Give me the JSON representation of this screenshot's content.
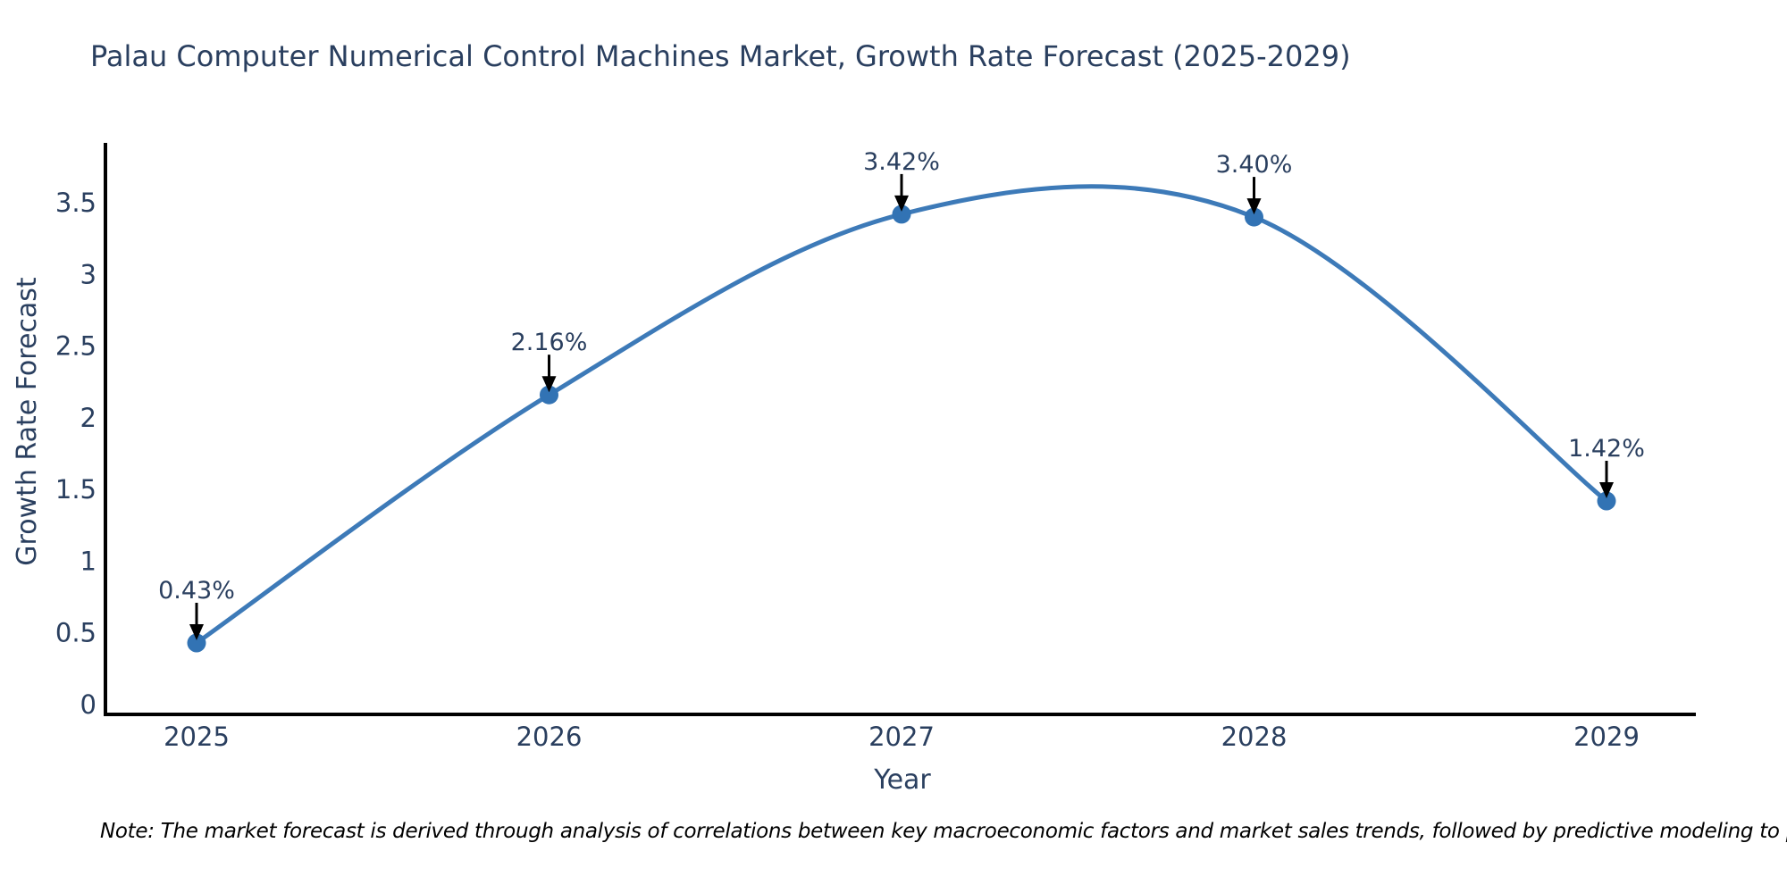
{
  "note": "Note: The market forecast is derived through analysis of correlations between key macroeconomic factors and market sales trends, followed by predictive modeling to project future sales",
  "colors": {
    "text": "#2a3f5f",
    "line": "#3d7ab8",
    "marker": "#3273b4",
    "axis": "#000000",
    "annotation_arrow": "#000000",
    "note_text": "#000000",
    "background": "#ffffff"
  },
  "chart_data": {
    "type": "line",
    "line_shape": "spline",
    "title": "Palau Computer Numerical Control Machines Market, Growth Rate Forecast (2025-2029)",
    "xlabel": "Year",
    "ylabel": "Growth Rate Forecast",
    "categories": [
      "2025",
      "2026",
      "2027",
      "2028",
      "2029"
    ],
    "values": [
      0.43,
      2.16,
      3.42,
      3.4,
      1.42
    ],
    "point_labels": [
      "0.43%",
      "2.16%",
      "3.42%",
      "3.40%",
      "1.42%"
    ],
    "ytick_labels": [
      "0",
      "0.5",
      "1",
      "1.5",
      "2",
      "2.5",
      "3",
      "3.5"
    ],
    "ytick_values": [
      0,
      0.5,
      1,
      1.5,
      2,
      2.5,
      3,
      3.5
    ],
    "ylim": [
      0,
      3.95
    ],
    "grid": false,
    "legend": "none",
    "marker": "circle",
    "annotation_style": "value label with downward arrow to point"
  }
}
